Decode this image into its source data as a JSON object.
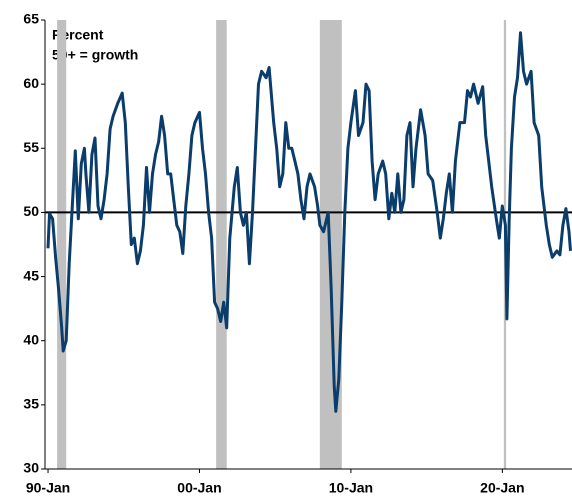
{
  "chart_data": {
    "type": "line",
    "annotations": [
      "Percent",
      "50+ = growth"
    ],
    "color": "#0a3d6b",
    "x": [
      1990.0,
      1990.1,
      1990.3,
      1990.5,
      1990.7,
      1990.9,
      1991.0,
      1991.2,
      1991.4,
      1991.6,
      1991.8,
      1992.0,
      1992.2,
      1992.4,
      1992.5,
      1992.7,
      1992.9,
      1993.1,
      1993.3,
      1993.5,
      1993.7,
      1993.9,
      1994.1,
      1994.3,
      1994.6,
      1994.9,
      1995.1,
      1995.3,
      1995.5,
      1995.7,
      1995.9,
      1996.1,
      1996.3,
      1996.5,
      1996.7,
      1996.9,
      1997.1,
      1997.3,
      1997.5,
      1997.7,
      1997.9,
      1998.1,
      1998.3,
      1998.5,
      1998.7,
      1998.9,
      1999.1,
      1999.3,
      1999.5,
      1999.7,
      2000.0,
      2000.2,
      2000.4,
      2000.6,
      2000.8,
      2001.0,
      2001.2,
      2001.4,
      2001.6,
      2001.8,
      2002.0,
      2002.3,
      2002.5,
      2002.7,
      2002.9,
      2003.1,
      2003.3,
      2003.5,
      2003.7,
      2003.9,
      2004.1,
      2004.4,
      2004.6,
      2004.9,
      2005.1,
      2005.3,
      2005.5,
      2005.7,
      2005.9,
      2006.1,
      2006.3,
      2006.5,
      2006.7,
      2006.9,
      2007.1,
      2007.3,
      2007.6,
      2007.8,
      2007.95,
      2008.2,
      2008.5,
      2008.7,
      2008.9,
      2009.0,
      2009.2,
      2009.4,
      2009.6,
      2009.8,
      2010.0,
      2010.3,
      2010.5,
      2010.8,
      2011.0,
      2011.2,
      2011.4,
      2011.6,
      2011.8,
      2012.1,
      2012.3,
      2012.5,
      2012.7,
      2012.9,
      2013.1,
      2013.3,
      2013.5,
      2013.7,
      2013.9,
      2014.1,
      2014.3,
      2014.6,
      2014.9,
      2015.1,
      2015.4,
      2015.7,
      2015.9,
      2016.1,
      2016.3,
      2016.5,
      2016.7,
      2016.9,
      2017.2,
      2017.5,
      2017.7,
      2017.9,
      2018.1,
      2018.4,
      2018.7,
      2018.9,
      2019.1,
      2019.3,
      2019.6,
      2019.8,
      2020.0,
      2020.2,
      2020.3,
      2020.45,
      2020.6,
      2020.8,
      2021.0,
      2021.2,
      2021.4,
      2021.6,
      2021.9,
      2022.1,
      2022.4,
      2022.6,
      2022.9,
      2023.1,
      2023.3,
      2023.6,
      2023.8,
      2024.0,
      2024.2,
      2024.4,
      2024.5
    ],
    "values": [
      47.2,
      49.9,
      49.5,
      46.5,
      44,
      41,
      39.2,
      40,
      46,
      50.5,
      54.8,
      49.5,
      53.8,
      55,
      53,
      50,
      54.5,
      55.8,
      50.5,
      49.5,
      51,
      53,
      56.5,
      57.5,
      58.5,
      59.3,
      57,
      52,
      47.5,
      48,
      46,
      47,
      49,
      53.5,
      50,
      53,
      54.5,
      55.5,
      57.5,
      56,
      53,
      53,
      51,
      49,
      48.5,
      46.8,
      50.5,
      53,
      56,
      57,
      57.8,
      55,
      53,
      50,
      48,
      43,
      42.5,
      41.5,
      43,
      41,
      48,
      52,
      53.5,
      50,
      49,
      50,
      46,
      50,
      55,
      60,
      61,
      60.5,
      61.3,
      57,
      55,
      52,
      53,
      57,
      55,
      55,
      54,
      53,
      51,
      49.5,
      52,
      53,
      52,
      50.5,
      49,
      48.5,
      50,
      44,
      36.5,
      34.5,
      37,
      43,
      50,
      55,
      57,
      59.5,
      56,
      57,
      60,
      59.5,
      54,
      51,
      53,
      54,
      53,
      49.5,
      51.5,
      50,
      53,
      50,
      51,
      56,
      57,
      52,
      55,
      58,
      56,
      53,
      52.5,
      50,
      48,
      49.5,
      51.5,
      53,
      50,
      54,
      57,
      57,
      59.5,
      59,
      60,
      58.5,
      59.8,
      56,
      54,
      52,
      49.5,
      48,
      50.5,
      49,
      41.7,
      49.5,
      55,
      59,
      60.5,
      64,
      61,
      60,
      61,
      57,
      56,
      52,
      49,
      47.5,
      46.5,
      47,
      46.7,
      49,
      50.3,
      48.5,
      47
    ],
    "shaded_spans": [
      [
        1990.6,
        1991.2
      ],
      [
        2001.1,
        2001.8
      ],
      [
        2007.95,
        2009.4
      ],
      [
        2020.1,
        2020.25
      ]
    ],
    "reference_line": 50,
    "xlim": [
      1989.8,
      2024.6
    ],
    "ylim": [
      30,
      65
    ],
    "yticks": [
      30,
      35,
      40,
      45,
      50,
      55,
      60,
      65
    ],
    "xticks": [
      {
        "value": 1990,
        "label": "90-Jan"
      },
      {
        "value": 2000,
        "label": "00-Jan"
      },
      {
        "value": 2010,
        "label": "10-Jan"
      },
      {
        "value": 2020,
        "label": "20-Jan"
      }
    ]
  }
}
